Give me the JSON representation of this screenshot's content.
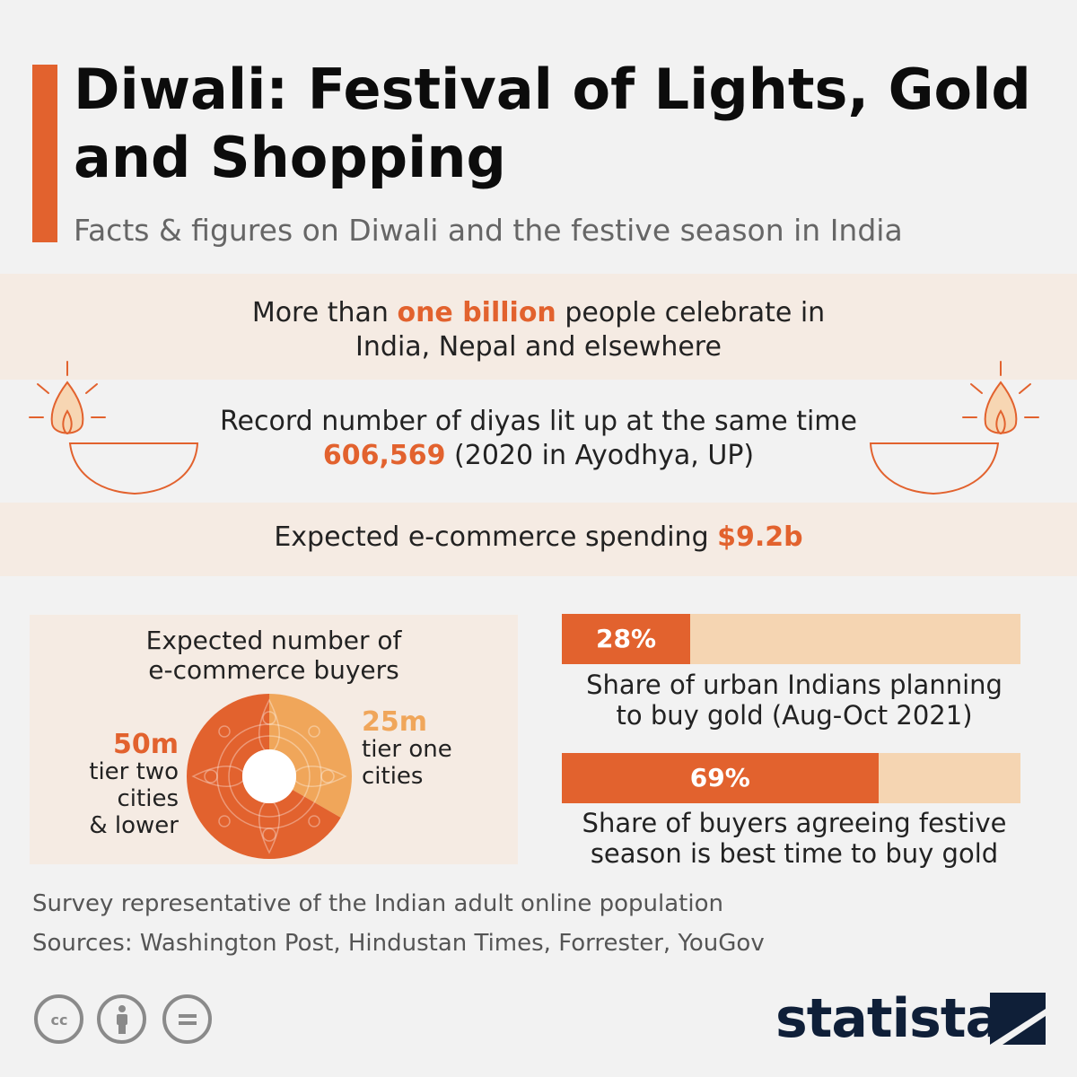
{
  "header": {
    "title": "Diwali: Festival of Lights, Gold and Shopping",
    "subtitle": "Facts & figures on Diwali and the festive season in India"
  },
  "facts": {
    "celebrants": {
      "prefix": "More than",
      "highlight": "one billion",
      "suffix": "people celebrate in",
      "line2": "India, Nepal and elsewhere"
    },
    "diyas": {
      "line1": "Record number of diyas lit up at the same time",
      "highlight": "606,569",
      "suffix": "(2020 in Ayodhya, UP)"
    },
    "ecommerce": {
      "prefix": "Expected e-commerce spending",
      "highlight": "$9.2b"
    }
  },
  "chart_data": [
    {
      "type": "pie",
      "title": "Expected number of e-commerce buyers",
      "unit": "m",
      "slices": [
        {
          "label": "tier two cities & lower",
          "value": 50,
          "display": "50m",
          "color": "#e2622e"
        },
        {
          "label": "tier one cities",
          "value": 25,
          "display": "25m",
          "color": "#f0a65a"
        }
      ]
    },
    {
      "type": "bar",
      "categories": [
        "Share of urban Indians planning to buy gold (Aug-Oct 2021)",
        "Share of buyers agreeing festive season is best time to buy gold"
      ],
      "values": [
        28,
        69
      ],
      "unit": "%",
      "ylim": [
        0,
        100
      ],
      "colors": {
        "fill": "#e2622e",
        "track": "#f5d5b2"
      }
    }
  ],
  "donut": {
    "title_line1": "Expected number of",
    "title_line2": "e-commerce buyers",
    "left_value": "50m",
    "left_line1": "tier two",
    "left_line2": "cities",
    "left_line3": "& lower",
    "right_value": "25m",
    "right_line1": "tier one",
    "right_line2": "cities"
  },
  "bars": {
    "bar1_label": "28%",
    "bar1_caption_line1": "Share of urban Indians planning",
    "bar1_caption_line2": "to buy gold (Aug-Oct 2021)",
    "bar2_label": "69%",
    "bar2_caption_line1": "Share of buyers agreeing festive",
    "bar2_caption_line2": "season is best time to buy gold"
  },
  "footer": {
    "note": "Survey representative of the Indian adult online population",
    "sources": "Sources: Washington Post, Hindustan Times, Forrester, YouGov",
    "brand": "statista",
    "license_icons": [
      "cc-icon",
      "attribution-icon",
      "no-derivatives-icon"
    ]
  },
  "colors": {
    "accent": "#e2622e",
    "light_accent": "#f0a65a",
    "band": "#f5ebe3",
    "track": "#f5d5b2"
  }
}
